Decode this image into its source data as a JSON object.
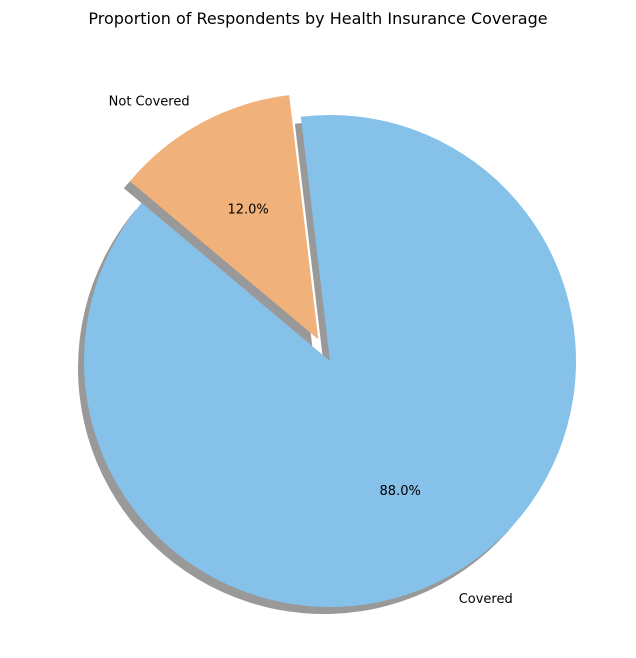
{
  "chart_data": {
    "type": "pie",
    "title": "Proportion of Respondents by Health Insurance Coverage",
    "labels": [
      "Covered",
      "Not Covered"
    ],
    "values": [
      88.0,
      12.0
    ],
    "percent_labels": [
      "88.0%",
      "12.0%"
    ],
    "colors": [
      "#85C1E9",
      "#F0B27A"
    ],
    "explode": [
      0,
      0.1
    ],
    "start_angle": 140,
    "direction": "counterclockwise",
    "shadow": true,
    "legend": "none"
  }
}
